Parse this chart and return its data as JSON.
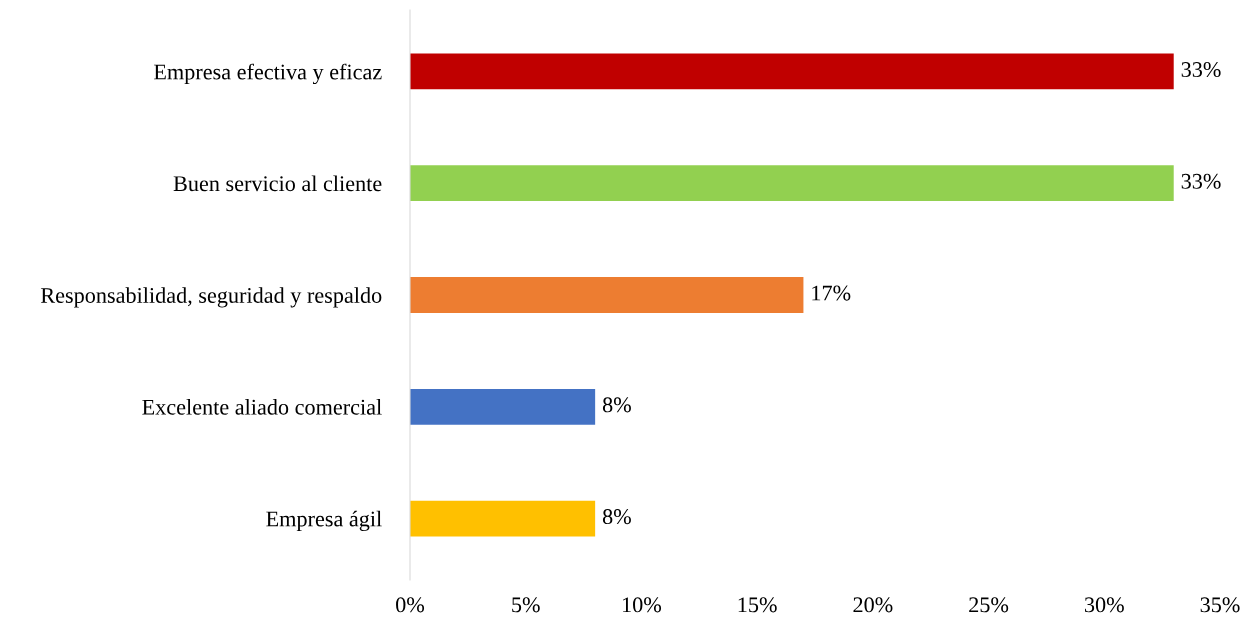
{
  "chart_data": {
    "type": "bar",
    "orientation": "horizontal",
    "categories": [
      "Empresa efectiva y eficaz",
      "Buen servicio al cliente",
      "Responsabilidad, seguridad y respaldo",
      "Excelente aliado comercial",
      "Empresa ágil"
    ],
    "values": [
      33,
      33,
      17,
      8,
      8
    ],
    "value_labels": [
      "33%",
      "33%",
      "17%",
      "8%",
      "8%"
    ],
    "colors": [
      "#c00000",
      "#92d050",
      "#ed7d31",
      "#4472c4",
      "#ffc000"
    ],
    "xlim": [
      0,
      35
    ],
    "xticks": [
      {
        "value": 0,
        "label": "0%"
      },
      {
        "value": 5,
        "label": "5%"
      },
      {
        "value": 10,
        "label": "10%"
      },
      {
        "value": 15,
        "label": "15%"
      },
      {
        "value": 20,
        "label": "20%"
      },
      {
        "value": 25,
        "label": "25%"
      },
      {
        "value": 30,
        "label": "30%"
      },
      {
        "value": 35,
        "label": "35%"
      }
    ],
    "grid": false,
    "legend": false
  }
}
